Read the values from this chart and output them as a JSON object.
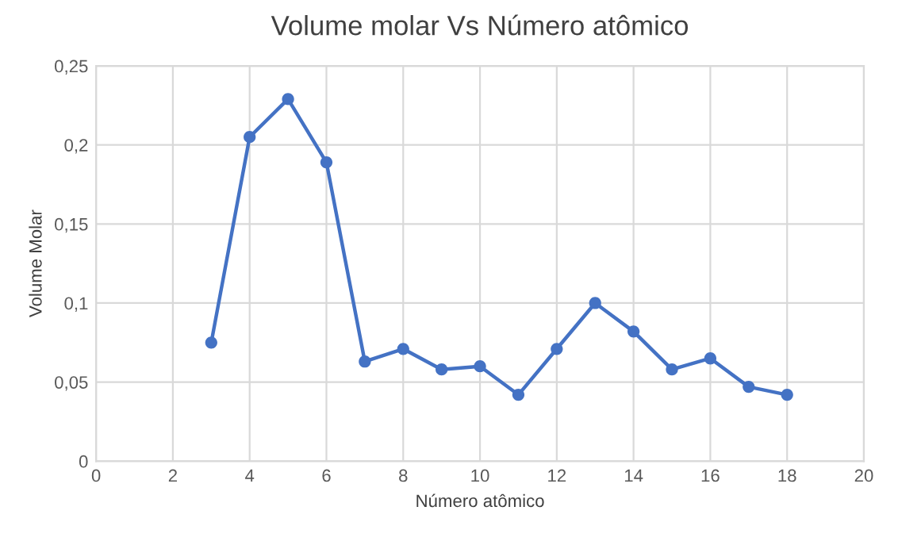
{
  "chart_data": {
    "type": "line",
    "title": "Volume molar Vs Número atômico",
    "xlabel": "Número atômico",
    "ylabel": "Volume Molar",
    "x": [
      3,
      4,
      5,
      6,
      7,
      8,
      9,
      10,
      11,
      12,
      13,
      14,
      15,
      16,
      17,
      18
    ],
    "series": [
      {
        "color": "#4472c4",
        "values": [
          0.075,
          0.205,
          0.229,
          0.189,
          0.063,
          0.071,
          0.058,
          0.06,
          0.042,
          0.071,
          0.1,
          0.082,
          0.058,
          0.065,
          0.047,
          0.042
        ]
      }
    ],
    "xlim": [
      0,
      20
    ],
    "xticks": [
      0,
      2,
      4,
      6,
      8,
      10,
      12,
      14,
      16,
      18,
      20
    ],
    "ylim": [
      0,
      0.25
    ],
    "yticks": [
      0,
      {
        "value": 0.05,
        "label": "0,05"
      },
      {
        "value": 0.1,
        "label": "0,1"
      },
      {
        "value": 0.15,
        "label": "0,15"
      },
      {
        "value": 0.2,
        "label": "0,2"
      },
      {
        "value": 0.25,
        "label": "0,25"
      }
    ],
    "grid": true,
    "marker": "circle",
    "line_style": "solid",
    "legend": false
  }
}
